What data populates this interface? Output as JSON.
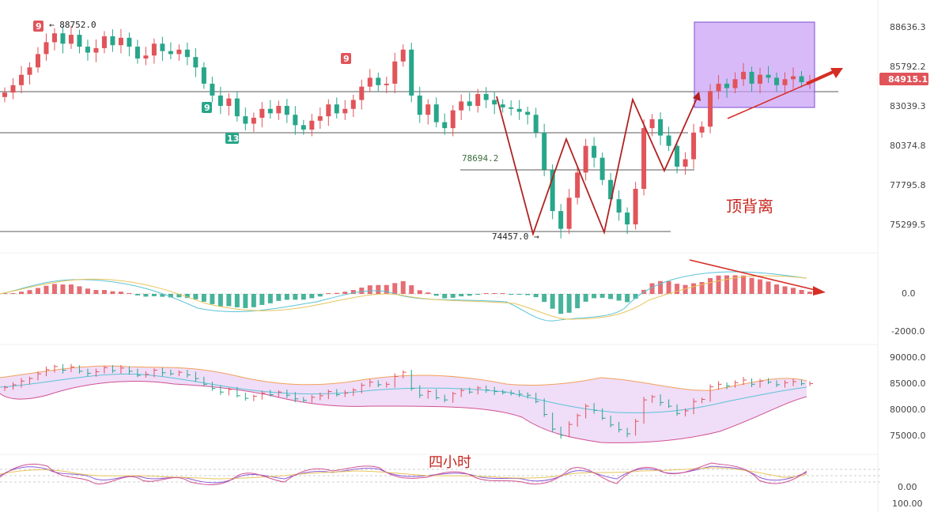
{
  "chart_data": {
    "type": "candlestick",
    "main": {
      "y_ticks": [
        "88636.3",
        "85792.2",
        "83039.3",
        "80374.8",
        "77795.8",
        "75299.5"
      ],
      "current_price": "84915.1",
      "high_label": "88752.0",
      "low_label": "74457.0",
      "level_label": "78694.2",
      "annotation_divergence": "顶背离",
      "td_badges": [
        "9",
        "9",
        "13",
        "9"
      ],
      "colors": {
        "up": "#e0545a",
        "down": "#27a68a",
        "box": "#b07cf0",
        "arrow": "#d62d24"
      },
      "candles_close_approx": [
        84200,
        84700,
        85400,
        85900,
        86800,
        87600,
        88200,
        87500,
        88100,
        87300,
        86900,
        87200,
        88000,
        87400,
        87900,
        87300,
        86500,
        86700,
        87500,
        87000,
        86800,
        87100,
        86600,
        85900,
        84800,
        84000,
        83300,
        83800,
        82600,
        82100,
        82500,
        83100,
        82800,
        83300,
        82700,
        82000,
        81700,
        82300,
        82600,
        83400,
        82800,
        83100,
        83700,
        84600,
        85200,
        84700,
        84800,
        86300,
        87100,
        84000,
        82700,
        83400,
        82200,
        81800,
        83000,
        83600,
        83300,
        84100,
        83700,
        83400,
        83200,
        83100,
        82900,
        82700,
        81500,
        79000,
        76200,
        75000,
        77100,
        78800,
        80600,
        79800,
        78300,
        77000,
        76100,
        75300,
        77700,
        81800,
        82400,
        81300,
        80600,
        79200,
        79700,
        81500,
        81900,
        84300,
        84800,
        84500,
        85100,
        85600,
        84800,
        85400,
        85200,
        84700,
        85100,
        85300,
        84900,
        84915
      ]
    },
    "macd": {
      "y_ticks": [
        "0.0",
        "-2000.0"
      ]
    },
    "bollinger": {
      "y_ticks": [
        "90000.0",
        "85000.0",
        "80000.0",
        "75000.0"
      ]
    },
    "oscillator": {
      "y_ticks": [
        "0.00",
        "100.00"
      ],
      "annotation_timeframe": "四小时"
    }
  }
}
